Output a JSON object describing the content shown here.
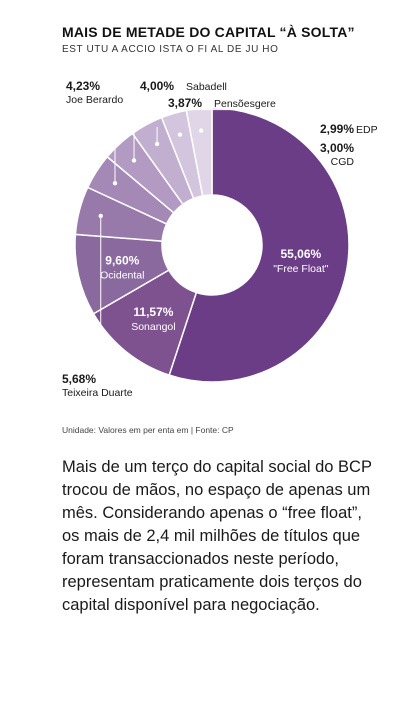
{
  "header": {
    "title": "MAIS DE METADE DO CAPITAL “À SOLTA”",
    "subtitle": "EST UTU A ACCIO ISTA O FI AL DE JU HO"
  },
  "footer": {
    "source": "Unidade: Valores em per enta em | Fonte: CP"
  },
  "article": {
    "text": "Mais de um terço do capital social do BCP trocou de mãos, no espaço de apenas um mês. Considerando apenas o “free float”, os mais de 2,4 mil milhões de títulos que foram transaccionados neste período, representam praticamente dois terços do capital disponível para negociação."
  },
  "colors": {
    "ff": "#6b3d86",
    "sonangol": "#7d528f",
    "occidental": "#8a6a9e",
    "teixeira": "#9779aa",
    "berardo": "#a488b5",
    "sabadell": "#b39ac2",
    "pensoes": "#c2aecf",
    "edp": "#d3c5de",
    "cgd": "#e0d6e8"
  },
  "chart_data": {
    "type": "pie",
    "donut": true,
    "title": "MAIS DE METADE DO CAPITAL “À SOLTA”",
    "slices": [
      {
        "label": "\"Free Float\"",
        "value": 55.06,
        "value_label": "55,06%",
        "color_key": "ff"
      },
      {
        "label": "Sonangol",
        "value": 11.57,
        "value_label": "11,57%",
        "color_key": "sonangol"
      },
      {
        "label": "Ocidental",
        "value": 9.6,
        "value_label": "9,60%",
        "color_key": "occidental"
      },
      {
        "label": "Teixeira Duarte",
        "value": 5.68,
        "value_label": "5,68%",
        "color_key": "teixeira"
      },
      {
        "label": "Joe Berardo",
        "value": 4.23,
        "value_label": "4,23%",
        "color_key": "berardo"
      },
      {
        "label": "Sabadell",
        "value": 4.0,
        "value_label": "4,00%",
        "color_key": "sabadell"
      },
      {
        "label": "Pensõesgere",
        "value": 3.87,
        "value_label": "3,87%",
        "color_key": "pensoes"
      },
      {
        "label": "EDP",
        "value": 2.99,
        "value_label": "2,99%",
        "color_key": "edp"
      },
      {
        "label": "CGD",
        "value": 3.0,
        "value_label": "3,00%",
        "color_key": "cgd"
      }
    ]
  }
}
